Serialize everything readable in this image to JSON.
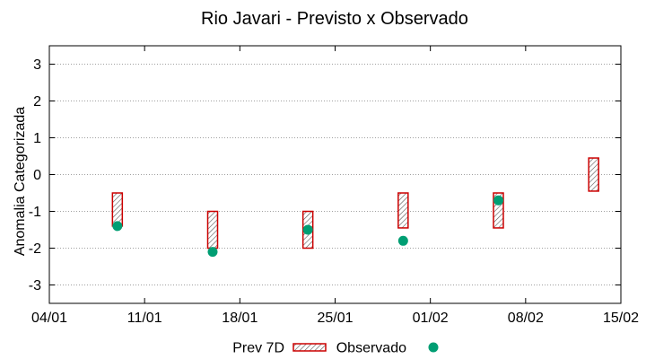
{
  "chart_data": {
    "type": "scatter",
    "title": "Rio Javari - Previsto x Observado",
    "xlabel": "",
    "ylabel": "Anomalia Categorizada",
    "x_tick_labels": [
      "04/01",
      "11/01",
      "18/01",
      "25/01",
      "01/02",
      "08/02",
      "15/02"
    ],
    "x_tick_days": [
      0,
      7,
      14,
      21,
      28,
      35,
      42
    ],
    "xlim_days": [
      0,
      42
    ],
    "ylim": [
      -3.5,
      3.5
    ],
    "y_ticks": [
      -3,
      -2,
      -1,
      0,
      1,
      2,
      3
    ],
    "grid": true,
    "legend_position": "bottom",
    "series": [
      {
        "name": "Prev 7D",
        "kind": "range-box",
        "color": "#cc0000",
        "points": [
          {
            "day": 5,
            "low": -1.4,
            "high": -0.5
          },
          {
            "day": 12,
            "low": -2.0,
            "high": -1.0
          },
          {
            "day": 19,
            "low": -2.0,
            "high": -1.0
          },
          {
            "day": 26,
            "low": -1.45,
            "high": -0.5
          },
          {
            "day": 33,
            "low": -1.45,
            "high": -0.5
          },
          {
            "day": 40,
            "low": -0.45,
            "high": 0.45
          }
        ]
      },
      {
        "name": "Observado",
        "kind": "point",
        "color": "#009e73",
        "points": [
          {
            "day": 5,
            "value": -1.4
          },
          {
            "day": 12,
            "value": -2.1
          },
          {
            "day": 19,
            "value": -1.5
          },
          {
            "day": 26,
            "value": -1.8
          },
          {
            "day": 33,
            "value": -0.7
          }
        ]
      }
    ]
  }
}
